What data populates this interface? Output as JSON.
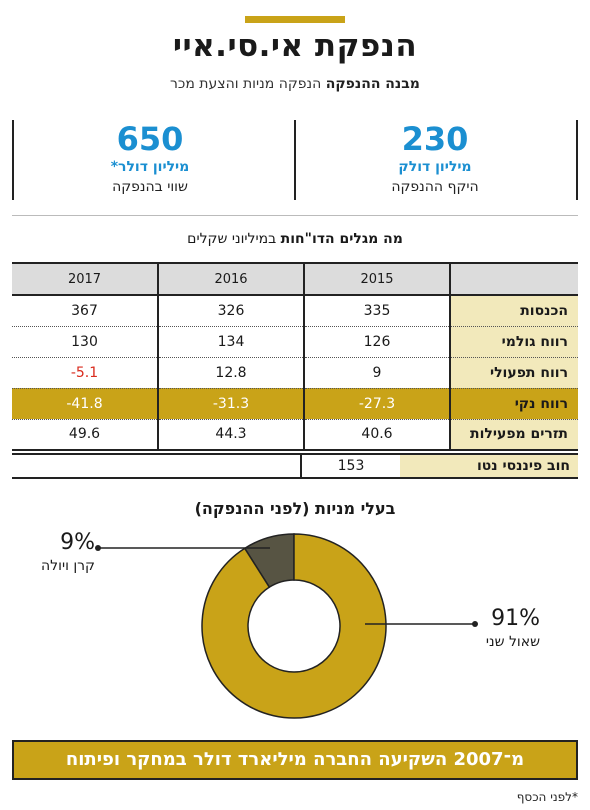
{
  "title": "הנפקת אי.סי.איי",
  "subtitle_bold": "מבנה ההנפקה",
  "subtitle_rest": "הנפקה מניות והצעת מכר",
  "stats": [
    {
      "num": "230",
      "unit": "מיליון דולק",
      "desc": "היקף ההנפקה"
    },
    {
      "num": "650",
      "unit": "מיליון דולר*",
      "desc": "שווי בהנפקה"
    }
  ],
  "table_title_bold": "מה מגלים הדו\"חות",
  "table_title_rest": "במיליוני שקלים",
  "table": {
    "years": [
      "2015",
      "2016",
      "2017"
    ],
    "rows": [
      {
        "label": "הכנסות",
        "values": [
          "335",
          "326",
          "367"
        ]
      },
      {
        "label": "רווח גולמי",
        "values": [
          "126",
          "134",
          "130"
        ]
      },
      {
        "label": "רווח תפעולי",
        "values": [
          "9",
          "12.8",
          "-5.1"
        ]
      },
      {
        "label": "רווח נקי",
        "values": [
          "-27.3",
          "-31.3",
          "-41.8"
        ]
      },
      {
        "label": "תזרים מפעילות",
        "values": [
          "40.6",
          "44.3",
          "49.6"
        ]
      }
    ]
  },
  "debt": {
    "label": "חוב פיננסי נטו",
    "value": "153"
  },
  "pie": {
    "title": "בעלי מניות (לפני ההנפקה)",
    "slices": [
      {
        "name": "שאול שני",
        "pct": "91%",
        "value": 91,
        "color": "#c9a318"
      },
      {
        "name": "קרן ויולה",
        "pct": "9%",
        "value": 9,
        "color": "#575443"
      }
    ]
  },
  "banner": "מ־2007 השקיעה החברה מיליארד דולר במחקר ופיתוח",
  "footnote": "*לפני הכסף"
}
